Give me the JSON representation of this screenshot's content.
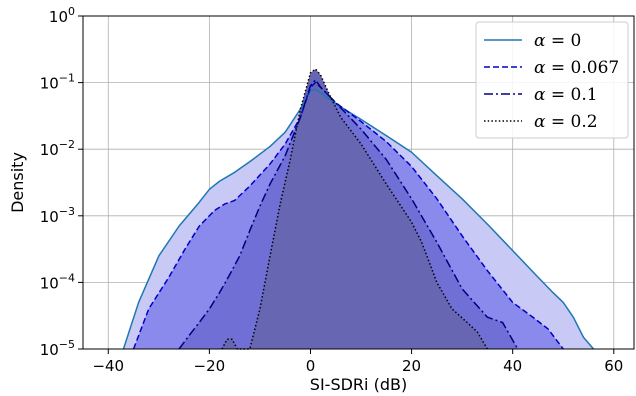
{
  "chart_data": {
    "type": "area",
    "xlabel": "SI-SDRi (dB)",
    "ylabel": "Density",
    "xlim": [
      -45,
      64
    ],
    "ylim": [
      1e-05,
      1
    ],
    "yscale": "log",
    "grid": true,
    "legend_position": "top-right",
    "x_ticks": [
      -40,
      -20,
      0,
      20,
      40,
      60
    ],
    "x_tick_labels": [
      "−40",
      "−20",
      "0",
      "20",
      "40",
      "60"
    ],
    "y_ticks": [
      1e-05,
      0.0001,
      0.001,
      0.01,
      0.1,
      1
    ],
    "y_tick_labels": [
      {
        "base": "10",
        "exp": "−5"
      },
      {
        "base": "10",
        "exp": "−4"
      },
      {
        "base": "10",
        "exp": "−3"
      },
      {
        "base": "10",
        "exp": "−2"
      },
      {
        "base": "10",
        "exp": "−1"
      },
      {
        "base": "10",
        "exp": "0"
      }
    ],
    "series": [
      {
        "name": "α = 0",
        "legend_symbol": "α",
        "legend_value": "= 0",
        "line_style": "solid",
        "line_color": "#1f77b4",
        "fill_color": "#c9c9f5",
        "x": [
          -37,
          -34,
          -30,
          -26,
          -22,
          -20,
          -18,
          -15,
          -12,
          -8,
          -5,
          -2,
          0,
          1,
          2,
          5,
          10,
          15,
          20,
          25,
          30,
          35,
          40,
          45,
          48,
          50,
          52,
          54,
          56
        ],
        "y": [
          1e-05,
          5e-05,
          0.00025,
          0.0007,
          0.0016,
          0.0025,
          0.0033,
          0.0045,
          0.0065,
          0.011,
          0.018,
          0.04,
          0.075,
          0.08,
          0.07,
          0.048,
          0.028,
          0.016,
          0.009,
          0.004,
          0.0018,
          0.00075,
          0.0003,
          0.00012,
          7e-05,
          5e-05,
          3e-05,
          1.5e-05,
          1e-05
        ]
      },
      {
        "name": "α = 0.067",
        "legend_symbol": "α",
        "legend_value": "= 0.067",
        "line_style": "dashed",
        "line_color": "#0000cc",
        "fill_color": "#8a8aec",
        "x": [
          -35,
          -32,
          -28,
          -25,
          -22,
          -19,
          -17,
          -15,
          -12,
          -8,
          -5,
          -2,
          0,
          1,
          2,
          5,
          10,
          15,
          20,
          25,
          30,
          35,
          40,
          44,
          47,
          50
        ],
        "y": [
          1e-05,
          4e-05,
          0.00012,
          0.0003,
          0.0007,
          0.0012,
          0.0015,
          0.0017,
          0.0028,
          0.006,
          0.012,
          0.03,
          0.085,
          0.1,
          0.085,
          0.05,
          0.026,
          0.013,
          0.0055,
          0.0018,
          0.0005,
          0.00015,
          5e-05,
          3e-05,
          2e-05,
          1e-05
        ]
      },
      {
        "name": "α = 0.1",
        "legend_symbol": "α",
        "legend_value": "= 0.1",
        "line_style": "dashdot",
        "line_color": "#000080",
        "fill_color": "#6f6fd6",
        "x": [
          -26,
          -24,
          -22,
          -20,
          -18,
          -16,
          -14,
          -12,
          -10,
          -8,
          -5,
          -2,
          0,
          1,
          2,
          5,
          10,
          15,
          20,
          25,
          30,
          35,
          38,
          41
        ],
        "y": [
          1e-05,
          1.6e-05,
          2.5e-05,
          4e-05,
          7e-05,
          0.00013,
          0.00025,
          0.0006,
          0.0014,
          0.003,
          0.008,
          0.03,
          0.09,
          0.11,
          0.085,
          0.05,
          0.02,
          0.007,
          0.0018,
          0.0004,
          8e-05,
          3e-05,
          2.5e-05,
          1e-05
        ]
      },
      {
        "name": "α = 0.2",
        "legend_symbol": "α",
        "legend_value": "= 0.2",
        "line_style": "dotted",
        "line_color": "#000000",
        "fill_color": "#6666b3",
        "x": [
          -17.5,
          -16.5,
          -15.5,
          -14.5,
          -12,
          -10,
          -8,
          -6,
          -4,
          -2,
          0,
          1,
          2,
          4,
          6,
          10,
          15,
          20,
          22,
          25,
          28,
          31,
          33,
          35
        ],
        "y": [
          1e-05,
          1.4e-05,
          1.4e-05,
          1e-05,
          1e-05,
          4e-05,
          0.00025,
          0.0015,
          0.007,
          0.04,
          0.14,
          0.16,
          0.13,
          0.06,
          0.03,
          0.012,
          0.003,
          0.0008,
          0.0004,
          0.0001,
          4e-05,
          2.5e-05,
          1.8e-05,
          1e-05
        ]
      }
    ]
  }
}
